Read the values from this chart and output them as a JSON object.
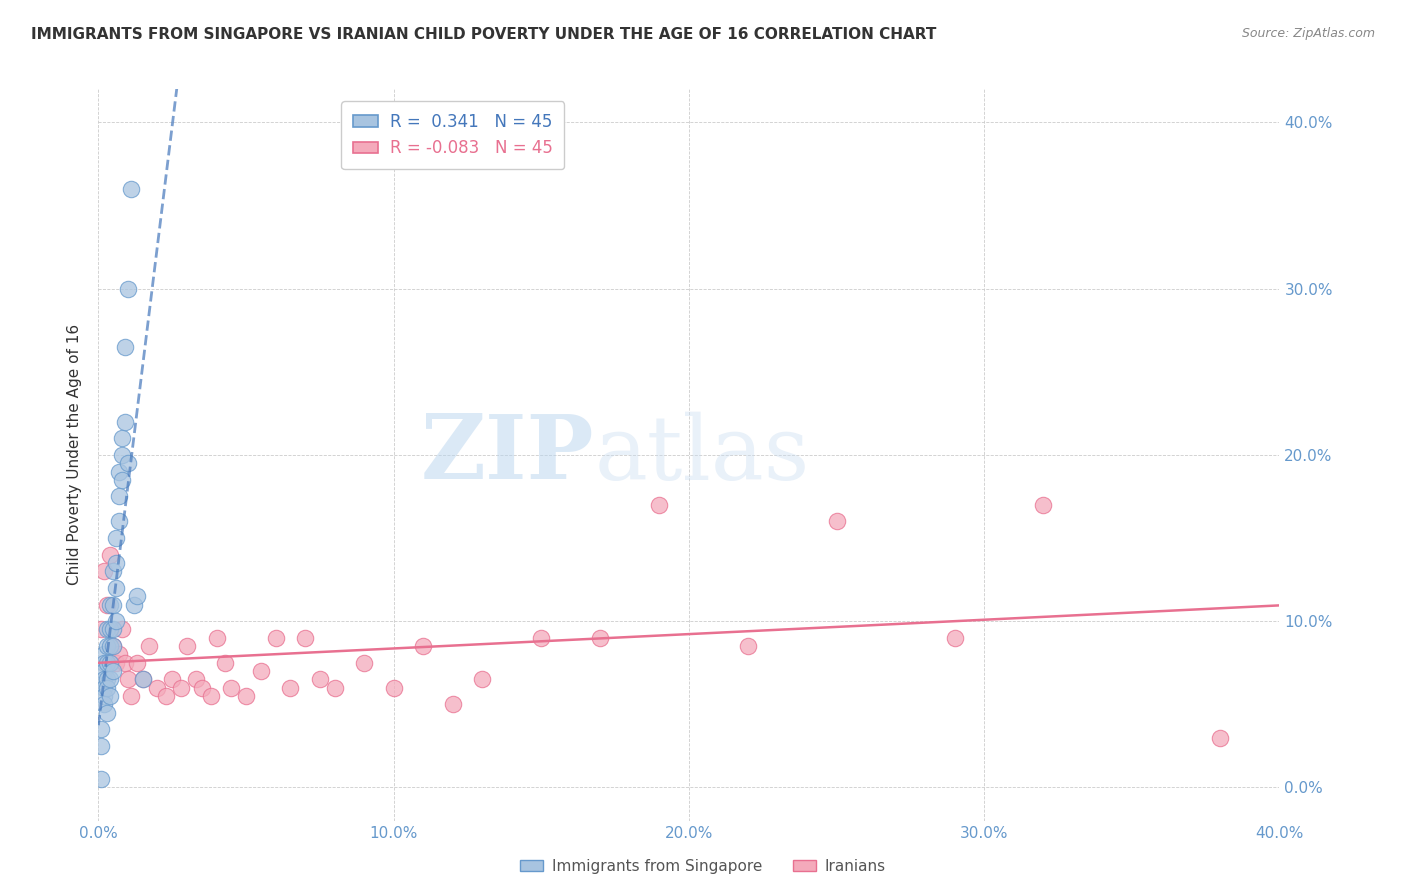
{
  "title": "IMMIGRANTS FROM SINGAPORE VS IRANIAN CHILD POVERTY UNDER THE AGE OF 16 CORRELATION CHART",
  "source": "Source: ZipAtlas.com",
  "ylabel": "Child Poverty Under the Age of 16",
  "xlim": [
    0.0,
    0.4
  ],
  "ylim": [
    -0.02,
    0.42
  ],
  "yticks": [
    0.0,
    0.1,
    0.2,
    0.3,
    0.4
  ],
  "xticks": [
    0.0,
    0.1,
    0.2,
    0.3,
    0.4
  ],
  "legend_r_singapore": " 0.341",
  "legend_n_singapore": "45",
  "legend_r_iranians": "-0.083",
  "legend_n_iranians": "45",
  "color_singapore": "#A8C4E0",
  "color_iranians": "#F4AABB",
  "edge_singapore": "#6699CC",
  "edge_iranians": "#E87090",
  "color_trendline_singapore": "#4477BB",
  "color_trendline_iranians": "#E87090",
  "watermark_zip": "ZIP",
  "watermark_atlas": "atlas",
  "background_color": "#FFFFFF",
  "title_color": "#333333",
  "axis_color": "#6699CC",
  "grid_color": "#CCCCCC",
  "sg_x": [
    0.001,
    0.001,
    0.001,
    0.002,
    0.002,
    0.002,
    0.002,
    0.002,
    0.002,
    0.002,
    0.003,
    0.003,
    0.003,
    0.003,
    0.003,
    0.003,
    0.004,
    0.004,
    0.004,
    0.004,
    0.004,
    0.004,
    0.005,
    0.005,
    0.005,
    0.005,
    0.005,
    0.006,
    0.006,
    0.006,
    0.006,
    0.007,
    0.007,
    0.007,
    0.008,
    0.008,
    0.008,
    0.009,
    0.009,
    0.01,
    0.01,
    0.011,
    0.012,
    0.013,
    0.015
  ],
  "sg_y": [
    0.035,
    0.025,
    0.005,
    0.08,
    0.075,
    0.07,
    0.065,
    0.06,
    0.055,
    0.05,
    0.095,
    0.085,
    0.075,
    0.065,
    0.06,
    0.045,
    0.11,
    0.095,
    0.085,
    0.075,
    0.065,
    0.055,
    0.13,
    0.11,
    0.095,
    0.085,
    0.07,
    0.15,
    0.135,
    0.12,
    0.1,
    0.19,
    0.175,
    0.16,
    0.21,
    0.2,
    0.185,
    0.265,
    0.22,
    0.3,
    0.195,
    0.36,
    0.11,
    0.115,
    0.065
  ],
  "ir_x": [
    0.001,
    0.002,
    0.003,
    0.004,
    0.005,
    0.006,
    0.007,
    0.008,
    0.009,
    0.01,
    0.011,
    0.013,
    0.015,
    0.017,
    0.02,
    0.023,
    0.025,
    0.028,
    0.03,
    0.033,
    0.035,
    0.038,
    0.04,
    0.043,
    0.045,
    0.05,
    0.055,
    0.06,
    0.065,
    0.07,
    0.075,
    0.08,
    0.09,
    0.1,
    0.11,
    0.12,
    0.13,
    0.15,
    0.17,
    0.19,
    0.22,
    0.25,
    0.29,
    0.32,
    0.38
  ],
  "ir_y": [
    0.095,
    0.13,
    0.11,
    0.14,
    0.085,
    0.075,
    0.08,
    0.095,
    0.075,
    0.065,
    0.055,
    0.075,
    0.065,
    0.085,
    0.06,
    0.055,
    0.065,
    0.06,
    0.085,
    0.065,
    0.06,
    0.055,
    0.09,
    0.075,
    0.06,
    0.055,
    0.07,
    0.09,
    0.06,
    0.09,
    0.065,
    0.06,
    0.075,
    0.06,
    0.085,
    0.05,
    0.065,
    0.09,
    0.09,
    0.17,
    0.085,
    0.16,
    0.09,
    0.17,
    0.03
  ]
}
